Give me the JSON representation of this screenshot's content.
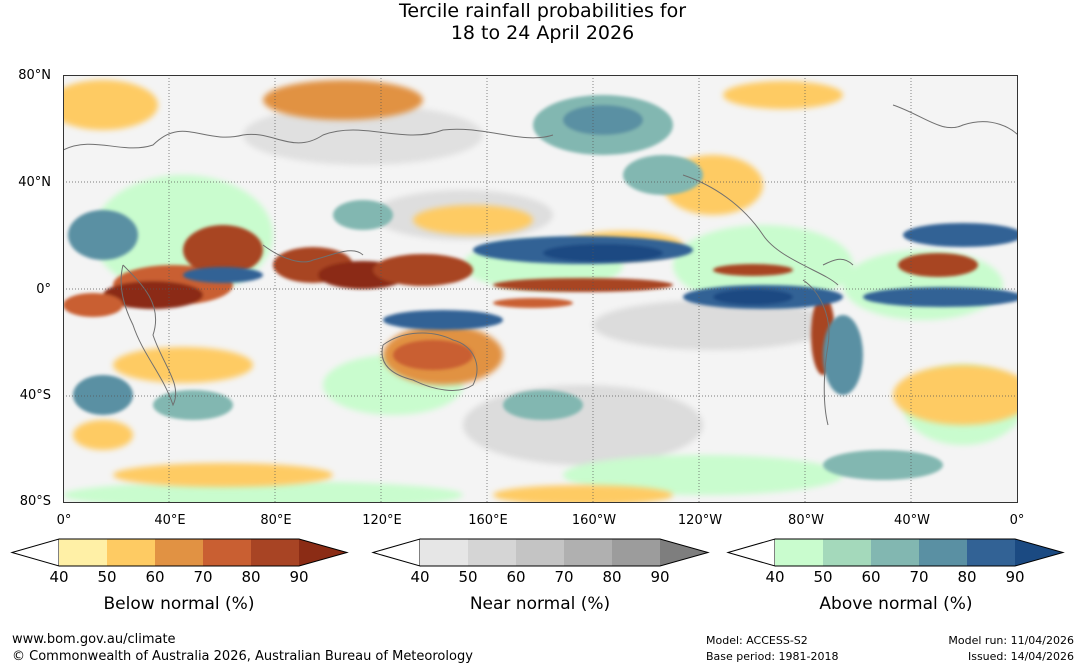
{
  "title": {
    "line1": "Tercile rainfall probabilities for",
    "line2": "18 to 24 April 2026"
  },
  "map": {
    "latitude_labels": [
      "80°N",
      "40°N",
      "0°",
      "40°S",
      "80°S"
    ],
    "longitude_labels": [
      "0°",
      "40°E",
      "80°E",
      "120°E",
      "160°E",
      "160°W",
      "120°W",
      "80°W",
      "40°W",
      "0°"
    ]
  },
  "legends": [
    {
      "title": "Below normal (%)",
      "ticks": [
        "40",
        "50",
        "60",
        "70",
        "80",
        "90"
      ],
      "colors": [
        "#fff0a6",
        "#fecb63",
        "#e19243",
        "#c95f32",
        "#a84424",
        "#8b2c15"
      ]
    },
    {
      "title": "Near normal (%)",
      "ticks": [
        "40",
        "50",
        "60",
        "70",
        "80",
        "90"
      ],
      "colors": [
        "#e6e6e6",
        "#d5d5d5",
        "#c4c4c4",
        "#b0b0b0",
        "#9c9c9c",
        "#7e7e7e"
      ]
    },
    {
      "title": "Above normal (%)",
      "ticks": [
        "40",
        "50",
        "60",
        "70",
        "80",
        "90"
      ],
      "colors": [
        "#c9fcce",
        "#a4d9bb",
        "#82b7b1",
        "#5a90a3",
        "#326295",
        "#1b4a82"
      ]
    }
  ],
  "footer": {
    "website": "www.bom.gov.au/climate",
    "copyright": "© Commonwealth of Australia 2026, Australian Bureau of Meteorology",
    "model": "Model: ACCESS-S2",
    "base_period": "Base period: 1981-2018",
    "model_run": "Model run: 11/04/2026",
    "issued": "Issued: 14/04/2026"
  },
  "colors": {
    "ocean_base": "#f7f7f7",
    "coastline": "#707070",
    "graticule": "#555555"
  }
}
